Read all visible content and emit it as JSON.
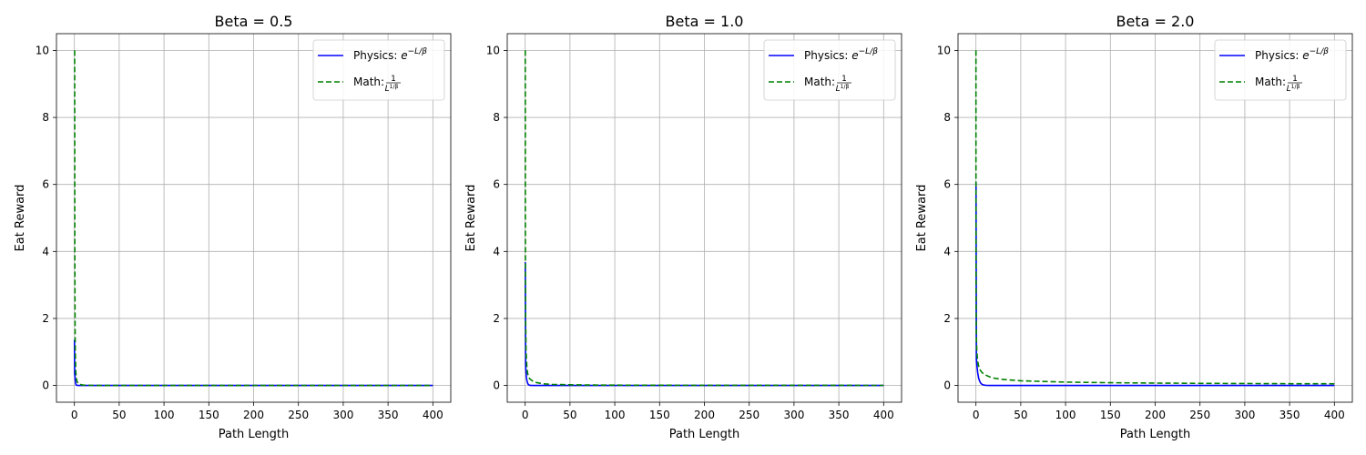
{
  "chart_data": [
    {
      "type": "line",
      "title": "Beta = 0.5",
      "beta": 0.5,
      "xlabel": "Path Length",
      "ylabel": "Eat Reward",
      "xlim": [
        -20,
        420
      ],
      "ylim": [
        -0.5,
        10.5
      ],
      "xticks": [
        0,
        50,
        100,
        150,
        200,
        250,
        300,
        350,
        400
      ],
      "yticks": [
        0,
        2,
        4,
        6,
        8,
        10
      ],
      "grid": true,
      "legend_position": "top-right",
      "series": [
        {
          "name": "Physics",
          "label_base": "Physics: ",
          "formula": "exp",
          "color": "#0000ff",
          "dash": "solid",
          "x": [
            0.1,
            0.2,
            0.3,
            0.5,
            0.75,
            1,
            1.5,
            2,
            3,
            5,
            10,
            50,
            100,
            200,
            300,
            400
          ],
          "y": [
            1.36,
            0.67,
            0.3,
            0.37,
            0.22,
            0.14,
            0.05,
            0.018,
            0.0025,
            0.0,
            0.0,
            0.0,
            0.0,
            0.0,
            0.0,
            0.0
          ]
        },
        {
          "name": "Math",
          "label_base": "Math: ",
          "formula": "power",
          "color": "#008000",
          "dash": "dashed",
          "x": [
            0.316,
            0.5,
            0.75,
            1,
            1.5,
            2,
            3,
            5,
            10,
            20,
            50,
            100,
            200,
            300,
            400
          ],
          "y": [
            10.0,
            4.0,
            1.78,
            1.0,
            0.44,
            0.25,
            0.11,
            0.04,
            0.01,
            0.0025,
            0.0004,
            0.0001,
            0.0,
            0.0,
            0.0
          ]
        }
      ]
    },
    {
      "type": "line",
      "title": "Beta = 1.0",
      "beta": 1.0,
      "xlabel": "Path Length",
      "ylabel": "Eat Reward",
      "xlim": [
        -20,
        420
      ],
      "ylim": [
        -0.5,
        10.5
      ],
      "xticks": [
        0,
        50,
        100,
        150,
        200,
        250,
        300,
        350,
        400
      ],
      "yticks": [
        0,
        2,
        4,
        6,
        8,
        10
      ],
      "grid": true,
      "legend_position": "top-right",
      "series": [
        {
          "name": "Physics",
          "label_base": "Physics: ",
          "formula": "exp",
          "color": "#0000ff",
          "dash": "solid",
          "x": [
            0.1,
            0.5,
            1,
            1.5,
            2,
            3,
            4,
            5,
            7,
            10,
            20,
            50,
            100,
            200,
            300,
            400
          ],
          "y": [
            3.68,
            0.61,
            0.37,
            0.22,
            0.14,
            0.05,
            0.018,
            0.0067,
            0.0009,
            0.0,
            0.0,
            0.0,
            0.0,
            0.0,
            0.0,
            0.0
          ]
        },
        {
          "name": "Math",
          "label_base": "Math: ",
          "formula": "power",
          "color": "#008000",
          "dash": "dashed",
          "x": [
            0.1,
            0.2,
            0.3,
            0.5,
            1,
            2,
            3,
            5,
            10,
            20,
            30,
            50,
            75,
            100,
            150,
            200,
            250,
            300,
            350,
            400
          ],
          "y": [
            10.0,
            5.0,
            3.33,
            2.0,
            1.0,
            0.5,
            0.33,
            0.2,
            0.1,
            0.05,
            0.033,
            0.02,
            0.013,
            0.01,
            0.0067,
            0.005,
            0.004,
            0.0033,
            0.0029,
            0.0025
          ]
        }
      ]
    },
    {
      "type": "line",
      "title": "Beta = 2.0",
      "beta": 2.0,
      "xlabel": "Path Length",
      "ylabel": "Eat Reward",
      "xlim": [
        -20,
        420
      ],
      "ylim": [
        -0.5,
        10.5
      ],
      "xticks": [
        0,
        50,
        100,
        150,
        200,
        250,
        300,
        350,
        400
      ],
      "yticks": [
        0,
        2,
        4,
        6,
        8,
        10
      ],
      "grid": true,
      "legend_position": "top-right",
      "series": [
        {
          "name": "Physics",
          "label_base": "Physics: ",
          "formula": "exp",
          "color": "#0000ff",
          "dash": "solid",
          "x": [
            0.1,
            0.5,
            1,
            2,
            3,
            4,
            5,
            6,
            8,
            10,
            12,
            15,
            20,
            30,
            50,
            100,
            200,
            300,
            400
          ],
          "y": [
            6.07,
            0.78,
            0.61,
            0.37,
            0.22,
            0.14,
            0.082,
            0.05,
            0.018,
            0.0067,
            0.0025,
            0.0006,
            0.0,
            0.0,
            0.0,
            0.0,
            0.0,
            0.0,
            0.0
          ]
        },
        {
          "name": "Math",
          "label_base": "Math: ",
          "formula": "power",
          "color": "#008000",
          "dash": "dashed",
          "x": [
            0.01,
            0.02,
            0.05,
            0.1,
            0.2,
            0.5,
            1,
            2,
            3,
            5,
            7,
            10,
            15,
            20,
            30,
            40,
            50,
            75,
            100,
            150,
            200,
            250,
            300,
            350,
            400
          ],
          "y": [
            10.0,
            7.07,
            4.47,
            3.16,
            2.24,
            1.41,
            1.0,
            0.71,
            0.58,
            0.45,
            0.38,
            0.32,
            0.26,
            0.22,
            0.18,
            0.16,
            0.14,
            0.12,
            0.1,
            0.082,
            0.071,
            0.063,
            0.058,
            0.053,
            0.05
          ]
        }
      ]
    }
  ]
}
